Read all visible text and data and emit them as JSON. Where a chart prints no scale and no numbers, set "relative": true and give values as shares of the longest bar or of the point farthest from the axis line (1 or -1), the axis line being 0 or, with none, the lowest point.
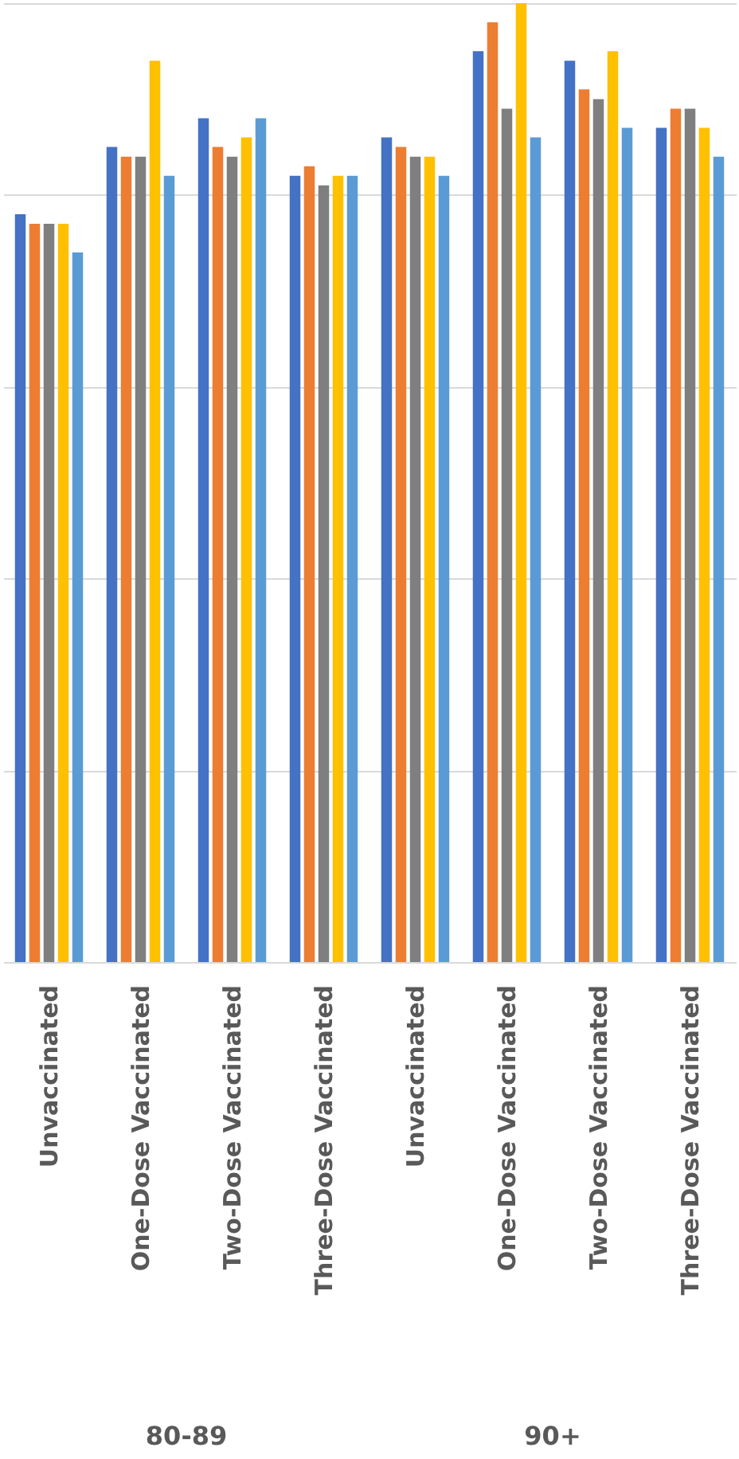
{
  "chart_data": {
    "type": "bar",
    "relative": true,
    "grid": "y",
    "categories": [
      "Unvaccinated",
      "One-Dose Vaccinated",
      "Two-Dose Vaccinated",
      "Three-Dose Vaccinated",
      "Unvaccinated",
      "One-Dose Vaccinated",
      "Two-Dose Vaccinated",
      "Three-Dose Vaccinated"
    ],
    "annotations": [
      "80-89",
      "90+"
    ],
    "series": [
      {
        "color": "#4472c4",
        "values": [
          0.78,
          0.85,
          0.88,
          0.82,
          0.86,
          0.95,
          0.94,
          0.87
        ]
      },
      {
        "color": "#ed7d31",
        "values": [
          0.77,
          0.84,
          0.85,
          0.83,
          0.85,
          0.98,
          0.91,
          0.89
        ]
      },
      {
        "color": "#7f7f7f",
        "values": [
          0.77,
          0.84,
          0.84,
          0.81,
          0.84,
          0.89,
          0.9,
          0.89
        ]
      },
      {
        "color": "#ffc000",
        "values": [
          0.77,
          0.94,
          0.86,
          0.82,
          0.84,
          1.0,
          0.95,
          0.87
        ]
      },
      {
        "color": "#5b9bd5",
        "values": [
          0.74,
          0.82,
          0.88,
          0.82,
          0.82,
          0.86,
          0.87,
          0.84
        ]
      }
    ]
  }
}
